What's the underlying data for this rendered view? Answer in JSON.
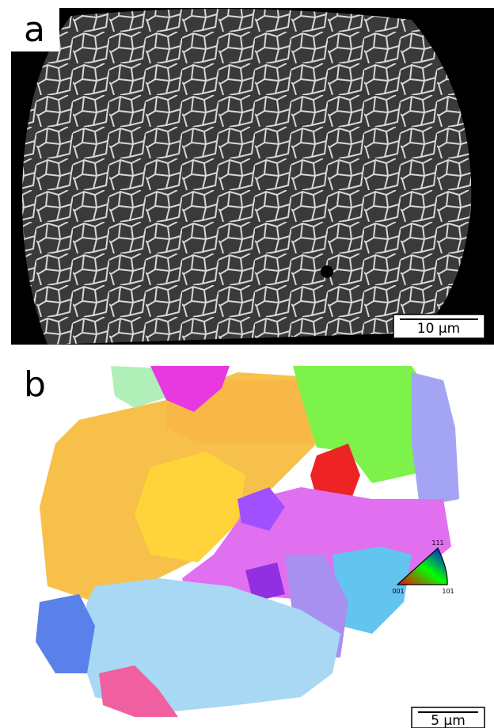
{
  "panels": [
    {
      "label": "a",
      "scale_bar": "10 µm"
    },
    {
      "label": "b",
      "scale_bar": "5 µm",
      "ipf_key": {
        "top": "111",
        "left": "001",
        "right": "101"
      }
    }
  ]
}
